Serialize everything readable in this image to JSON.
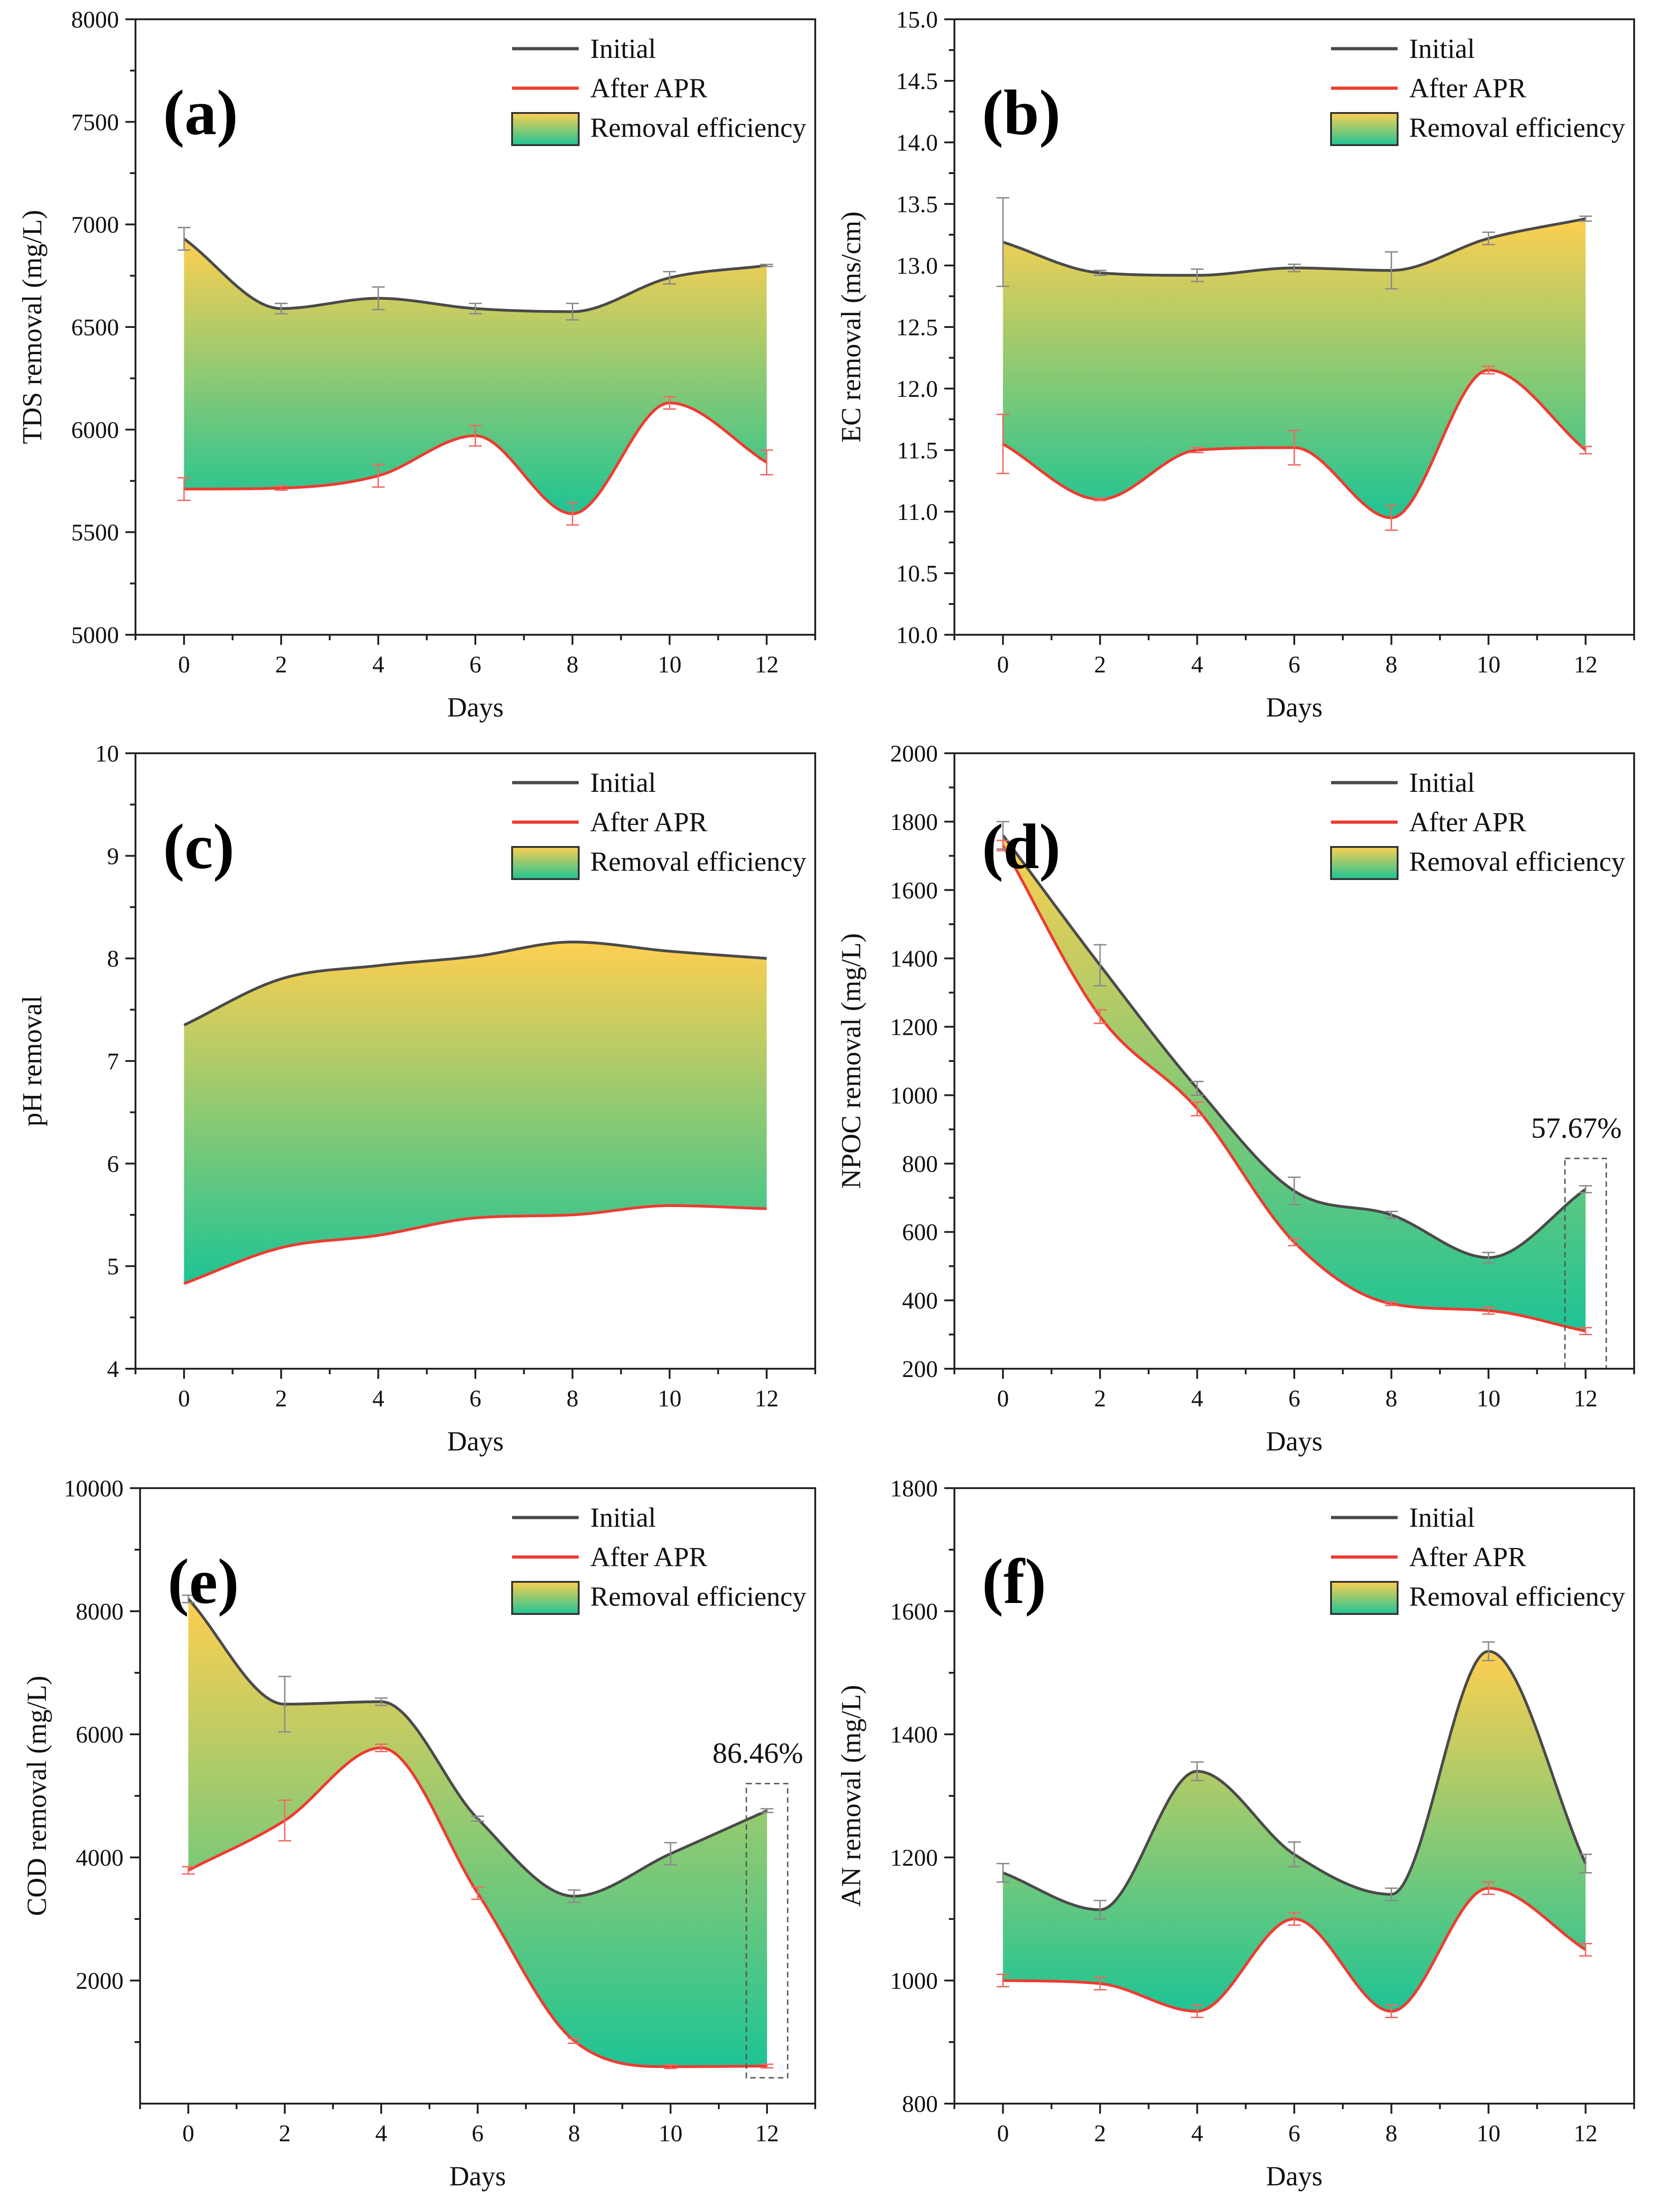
{
  "figure": {
    "legend": {
      "initial": "Initial",
      "after": "After APR",
      "removal": "Removal efficiency"
    },
    "colors": {
      "initial": "#4a4a4a",
      "after": "#ee3b30",
      "fill_top": "#fecf50",
      "fill_bottom": "#1dc495",
      "axis": "#222222"
    }
  },
  "chart_data": [
    {
      "panel": "(a)",
      "type": "area",
      "xlabel": "Days",
      "ylabel": "TDS removal (mg/L)",
      "xlim": [
        -1,
        13
      ],
      "ylim": [
        5000,
        8000
      ],
      "xticks": [
        0,
        2,
        4,
        6,
        8,
        10,
        12
      ],
      "yticks": [
        5000,
        5500,
        6000,
        6500,
        7000,
        7500,
        8000
      ],
      "ytick_labels": [
        "5000",
        "5500",
        "6000",
        "6500",
        "7000",
        "7500",
        "8000"
      ],
      "x": [
        0,
        2,
        4,
        6,
        8,
        10,
        12
      ],
      "series": [
        {
          "name": "Initial",
          "values": [
            6930,
            6590,
            6640,
            6590,
            6575,
            6740,
            6800
          ],
          "errors": [
            55,
            25,
            55,
            25,
            40,
            30,
            5
          ]
        },
        {
          "name": "After APR",
          "values": [
            5710,
            5715,
            5775,
            5970,
            5590,
            6130,
            5840
          ],
          "errors": [
            55,
            10,
            55,
            50,
            55,
            30,
            60
          ]
        }
      ],
      "annotation": null
    },
    {
      "panel": "(b)",
      "type": "area",
      "xlabel": "Days",
      "ylabel": "EC removal (ms/cm)",
      "xlim": [
        -1,
        13
      ],
      "ylim": [
        10,
        15
      ],
      "xticks": [
        0,
        2,
        4,
        6,
        8,
        10,
        12
      ],
      "yticks": [
        10,
        10.5,
        11,
        11.5,
        12,
        12.5,
        13,
        13.5,
        14,
        14.5,
        15
      ],
      "ytick_labels": [
        "10.0",
        "10.5",
        "11.0",
        "11.5",
        "12.0",
        "12.5",
        "13.0",
        "13.5",
        "14.0",
        "14.5",
        "15.0"
      ],
      "x": [
        0,
        2,
        4,
        6,
        8,
        10,
        12
      ],
      "series": [
        {
          "name": "Initial",
          "values": [
            13.19,
            12.94,
            12.92,
            12.98,
            12.96,
            13.22,
            13.38
          ],
          "errors": [
            0.36,
            0.02,
            0.05,
            0.03,
            0.15,
            0.05,
            0.02
          ]
        },
        {
          "name": "After APR",
          "values": [
            11.55,
            11.1,
            11.5,
            11.52,
            10.95,
            12.15,
            11.5
          ],
          "errors": [
            0.24,
            0.01,
            0.02,
            0.14,
            0.1,
            0.03,
            0.03
          ]
        }
      ],
      "annotation": null
    },
    {
      "panel": "(c)",
      "type": "area",
      "xlabel": "Days",
      "ylabel": "pH removal",
      "xlim": [
        -1,
        13
      ],
      "ylim": [
        4,
        10
      ],
      "xticks": [
        0,
        2,
        4,
        6,
        8,
        10,
        12
      ],
      "yticks": [
        4,
        5,
        6,
        7,
        8,
        9,
        10
      ],
      "ytick_labels": [
        "4",
        "5",
        "6",
        "7",
        "8",
        "9",
        "10"
      ],
      "x": [
        0,
        2,
        4,
        6,
        8,
        10,
        12
      ],
      "series": [
        {
          "name": "Initial",
          "values": [
            7.35,
            7.8,
            7.93,
            8.02,
            8.16,
            8.07,
            8.0
          ],
          "errors": [
            0,
            0,
            0,
            0,
            0,
            0,
            0
          ]
        },
        {
          "name": "After APR",
          "values": [
            4.83,
            5.18,
            5.3,
            5.47,
            5.5,
            5.59,
            5.56
          ],
          "errors": [
            0,
            0,
            0,
            0,
            0,
            0,
            0
          ]
        }
      ],
      "annotation": null
    },
    {
      "panel": "(d)",
      "type": "area",
      "xlabel": "Days",
      "ylabel": "NPOC removal (mg/L)",
      "xlim": [
        -1,
        13
      ],
      "ylim": [
        200,
        2000
      ],
      "xticks": [
        0,
        2,
        4,
        6,
        8,
        10,
        12
      ],
      "yticks": [
        200,
        400,
        600,
        800,
        1000,
        1200,
        1400,
        1600,
        1800,
        2000
      ],
      "ytick_labels": [
        "200",
        "400",
        "600",
        "800",
        "1000",
        "1200",
        "1400",
        "1600",
        "1800",
        "2000"
      ],
      "x": [
        0,
        2,
        4,
        6,
        8,
        10,
        12
      ],
      "series": [
        {
          "name": "Initial",
          "values": [
            1760,
            1380,
            1020,
            720,
            650,
            525,
            725
          ],
          "errors": [
            40,
            60,
            20,
            40,
            10,
            15,
            10
          ]
        },
        {
          "name": "After APR",
          "values": [
            1730,
            1230,
            960,
            570,
            390,
            370,
            310
          ],
          "errors": [
            15,
            20,
            20,
            10,
            5,
            10,
            10
          ]
        }
      ],
      "annotation": {
        "text": "57.67%",
        "x": 12,
        "box_ylim": [
          200,
          815
        ]
      }
    },
    {
      "panel": "(e)",
      "type": "area",
      "xlabel": "Days",
      "ylabel": "COD removal (mg/L)",
      "xlim": [
        -1,
        13
      ],
      "ylim": [
        0,
        10000
      ],
      "xticks": [
        0,
        2,
        4,
        6,
        8,
        10,
        12
      ],
      "yticks": [
        2000,
        4000,
        6000,
        8000,
        10000
      ],
      "ytick_labels": [
        "2000",
        "4000",
        "6000",
        "8000",
        "10000"
      ],
      "x": [
        0,
        2,
        4,
        6,
        8,
        10,
        12
      ],
      "series": [
        {
          "name": "Initial",
          "values": [
            8200,
            6490,
            6530,
            4630,
            3370,
            4060,
            4760
          ],
          "errors": [
            60,
            450,
            60,
            40,
            100,
            180,
            30
          ]
        },
        {
          "name": "After APR",
          "values": [
            3790,
            4600,
            5780,
            3420,
            1020,
            600,
            610
          ],
          "errors": [
            60,
            330,
            60,
            100,
            40,
            30,
            30
          ]
        }
      ],
      "annotation": {
        "text": "86.46%",
        "x": 12,
        "box_ylim": [
          420,
          5200
        ]
      }
    },
    {
      "panel": "(f)",
      "type": "area",
      "xlabel": "Days",
      "ylabel": "AN removal (mg/L)",
      "xlim": [
        -1,
        13
      ],
      "ylim": [
        800,
        1800
      ],
      "xticks": [
        0,
        2,
        4,
        6,
        8,
        10,
        12
      ],
      "yticks": [
        800,
        1000,
        1200,
        1400,
        1600,
        1800
      ],
      "ytick_labels": [
        "800",
        "1000",
        "1200",
        "1400",
        "1600",
        "1800"
      ],
      "x": [
        0,
        2,
        4,
        6,
        8,
        10,
        12
      ],
      "series": [
        {
          "name": "Initial",
          "values": [
            1175,
            1115,
            1340,
            1205,
            1140,
            1535,
            1190
          ],
          "errors": [
            15,
            15,
            15,
            20,
            10,
            15,
            15
          ]
        },
        {
          "name": "After APR",
          "values": [
            1000,
            995,
            950,
            1100,
            950,
            1150,
            1050
          ],
          "errors": [
            10,
            10,
            10,
            10,
            10,
            10,
            10
          ]
        }
      ],
      "annotation": null
    }
  ]
}
